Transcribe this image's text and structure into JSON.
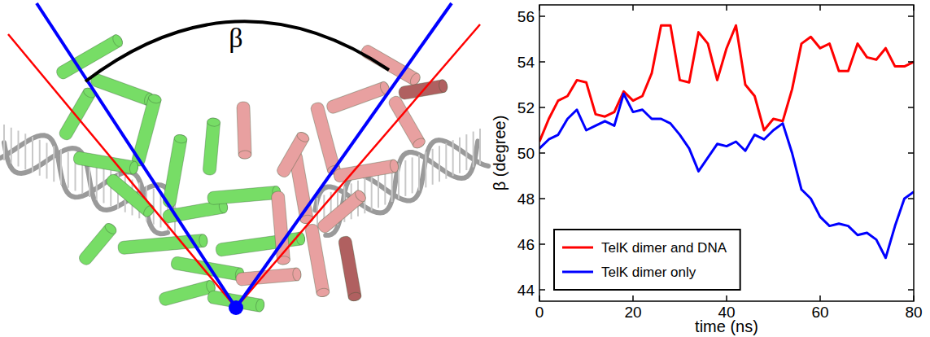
{
  "chart_data": {
    "type": "line",
    "annotations": [
      "β"
    ],
    "xlabel": "time (ns)",
    "ylabel": "β (degree)",
    "x": [
      0,
      2,
      4,
      6,
      8,
      10,
      12,
      14,
      16,
      18,
      20,
      22,
      24,
      26,
      28,
      30,
      32,
      34,
      36,
      38,
      40,
      42,
      44,
      46,
      48,
      50,
      52,
      54,
      56,
      58,
      60,
      62,
      64,
      66,
      68,
      70,
      72,
      74,
      76,
      78,
      80
    ],
    "series": [
      {
        "name": "TelK dimer and DNA",
        "color": "#ff0000",
        "values": [
          50.5,
          51.5,
          52.3,
          52.5,
          53.2,
          53.1,
          51.7,
          51.6,
          51.8,
          52.7,
          52.3,
          52.5,
          53.5,
          55.6,
          55.6,
          53.2,
          53.1,
          55.3,
          54.8,
          53.2,
          54.6,
          55.6,
          53.0,
          52.5,
          51.0,
          51.5,
          51.4,
          52.8,
          54.8,
          55.1,
          54.6,
          54.8,
          53.6,
          53.6,
          54.8,
          54.2,
          54.1,
          54.6,
          53.8,
          53.8,
          54.0
        ]
      },
      {
        "name": "TelK dimer only",
        "color": "#0000ff",
        "values": [
          50.2,
          50.6,
          50.8,
          51.5,
          51.9,
          51.0,
          51.2,
          51.4,
          51.2,
          52.6,
          51.8,
          51.9,
          51.5,
          51.5,
          51.3,
          50.8,
          50.2,
          49.2,
          49.8,
          50.4,
          50.3,
          50.5,
          50.1,
          50.8,
          50.6,
          51.0,
          51.3,
          50.0,
          48.4,
          48.0,
          47.2,
          46.8,
          46.9,
          46.8,
          46.4,
          46.5,
          46.2,
          45.4,
          46.8,
          48.0,
          48.3
        ]
      }
    ],
    "xlim": [
      0,
      80
    ],
    "xticks": [
      0,
      20,
      40,
      60,
      80
    ],
    "ylim": [
      43.5,
      56.5
    ],
    "yticks": [
      44,
      46,
      48,
      50,
      52,
      54,
      56
    ],
    "legend": "lower left"
  }
}
